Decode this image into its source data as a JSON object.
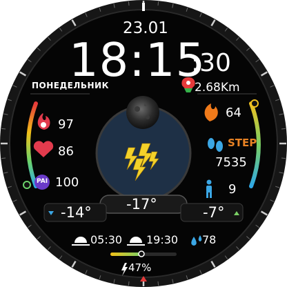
{
  "date": "23.01",
  "time": {
    "hours_minutes": "18:15",
    "seconds": ":30"
  },
  "weekday": "ПОНЕДЕЛЬНИК",
  "distance": "2.68Km",
  "left_metrics": [
    {
      "icon": "calories-icon",
      "value": "97"
    },
    {
      "icon": "heart-rate-icon",
      "value": "86"
    },
    {
      "icon": "pai-icon",
      "icon_text": "PAI",
      "value": "100"
    }
  ],
  "right_metrics": {
    "flame_value": "64",
    "step_label": "STEP",
    "steps": "7535",
    "standing_value": "9"
  },
  "weather": {
    "current_temp": "-17°",
    "low_temp": "-14°",
    "high_temp": "-7°",
    "icon": "thunderstorm-icon"
  },
  "moon_phase_icon": "moon-icon",
  "sunrise": "05:30",
  "sunset": "19:30",
  "humidity": "78",
  "battery": "47%",
  "colors": {
    "bezel": "#1a1a1a",
    "dial": "#050505",
    "center_disc": "#1e3046",
    "accent_orange": "#e98324",
    "accent_blue": "#3ba7e5",
    "pai_purple": "#6a3ac9",
    "heart_red": "#e23b4d",
    "flame_orange": "#f07a1a"
  }
}
